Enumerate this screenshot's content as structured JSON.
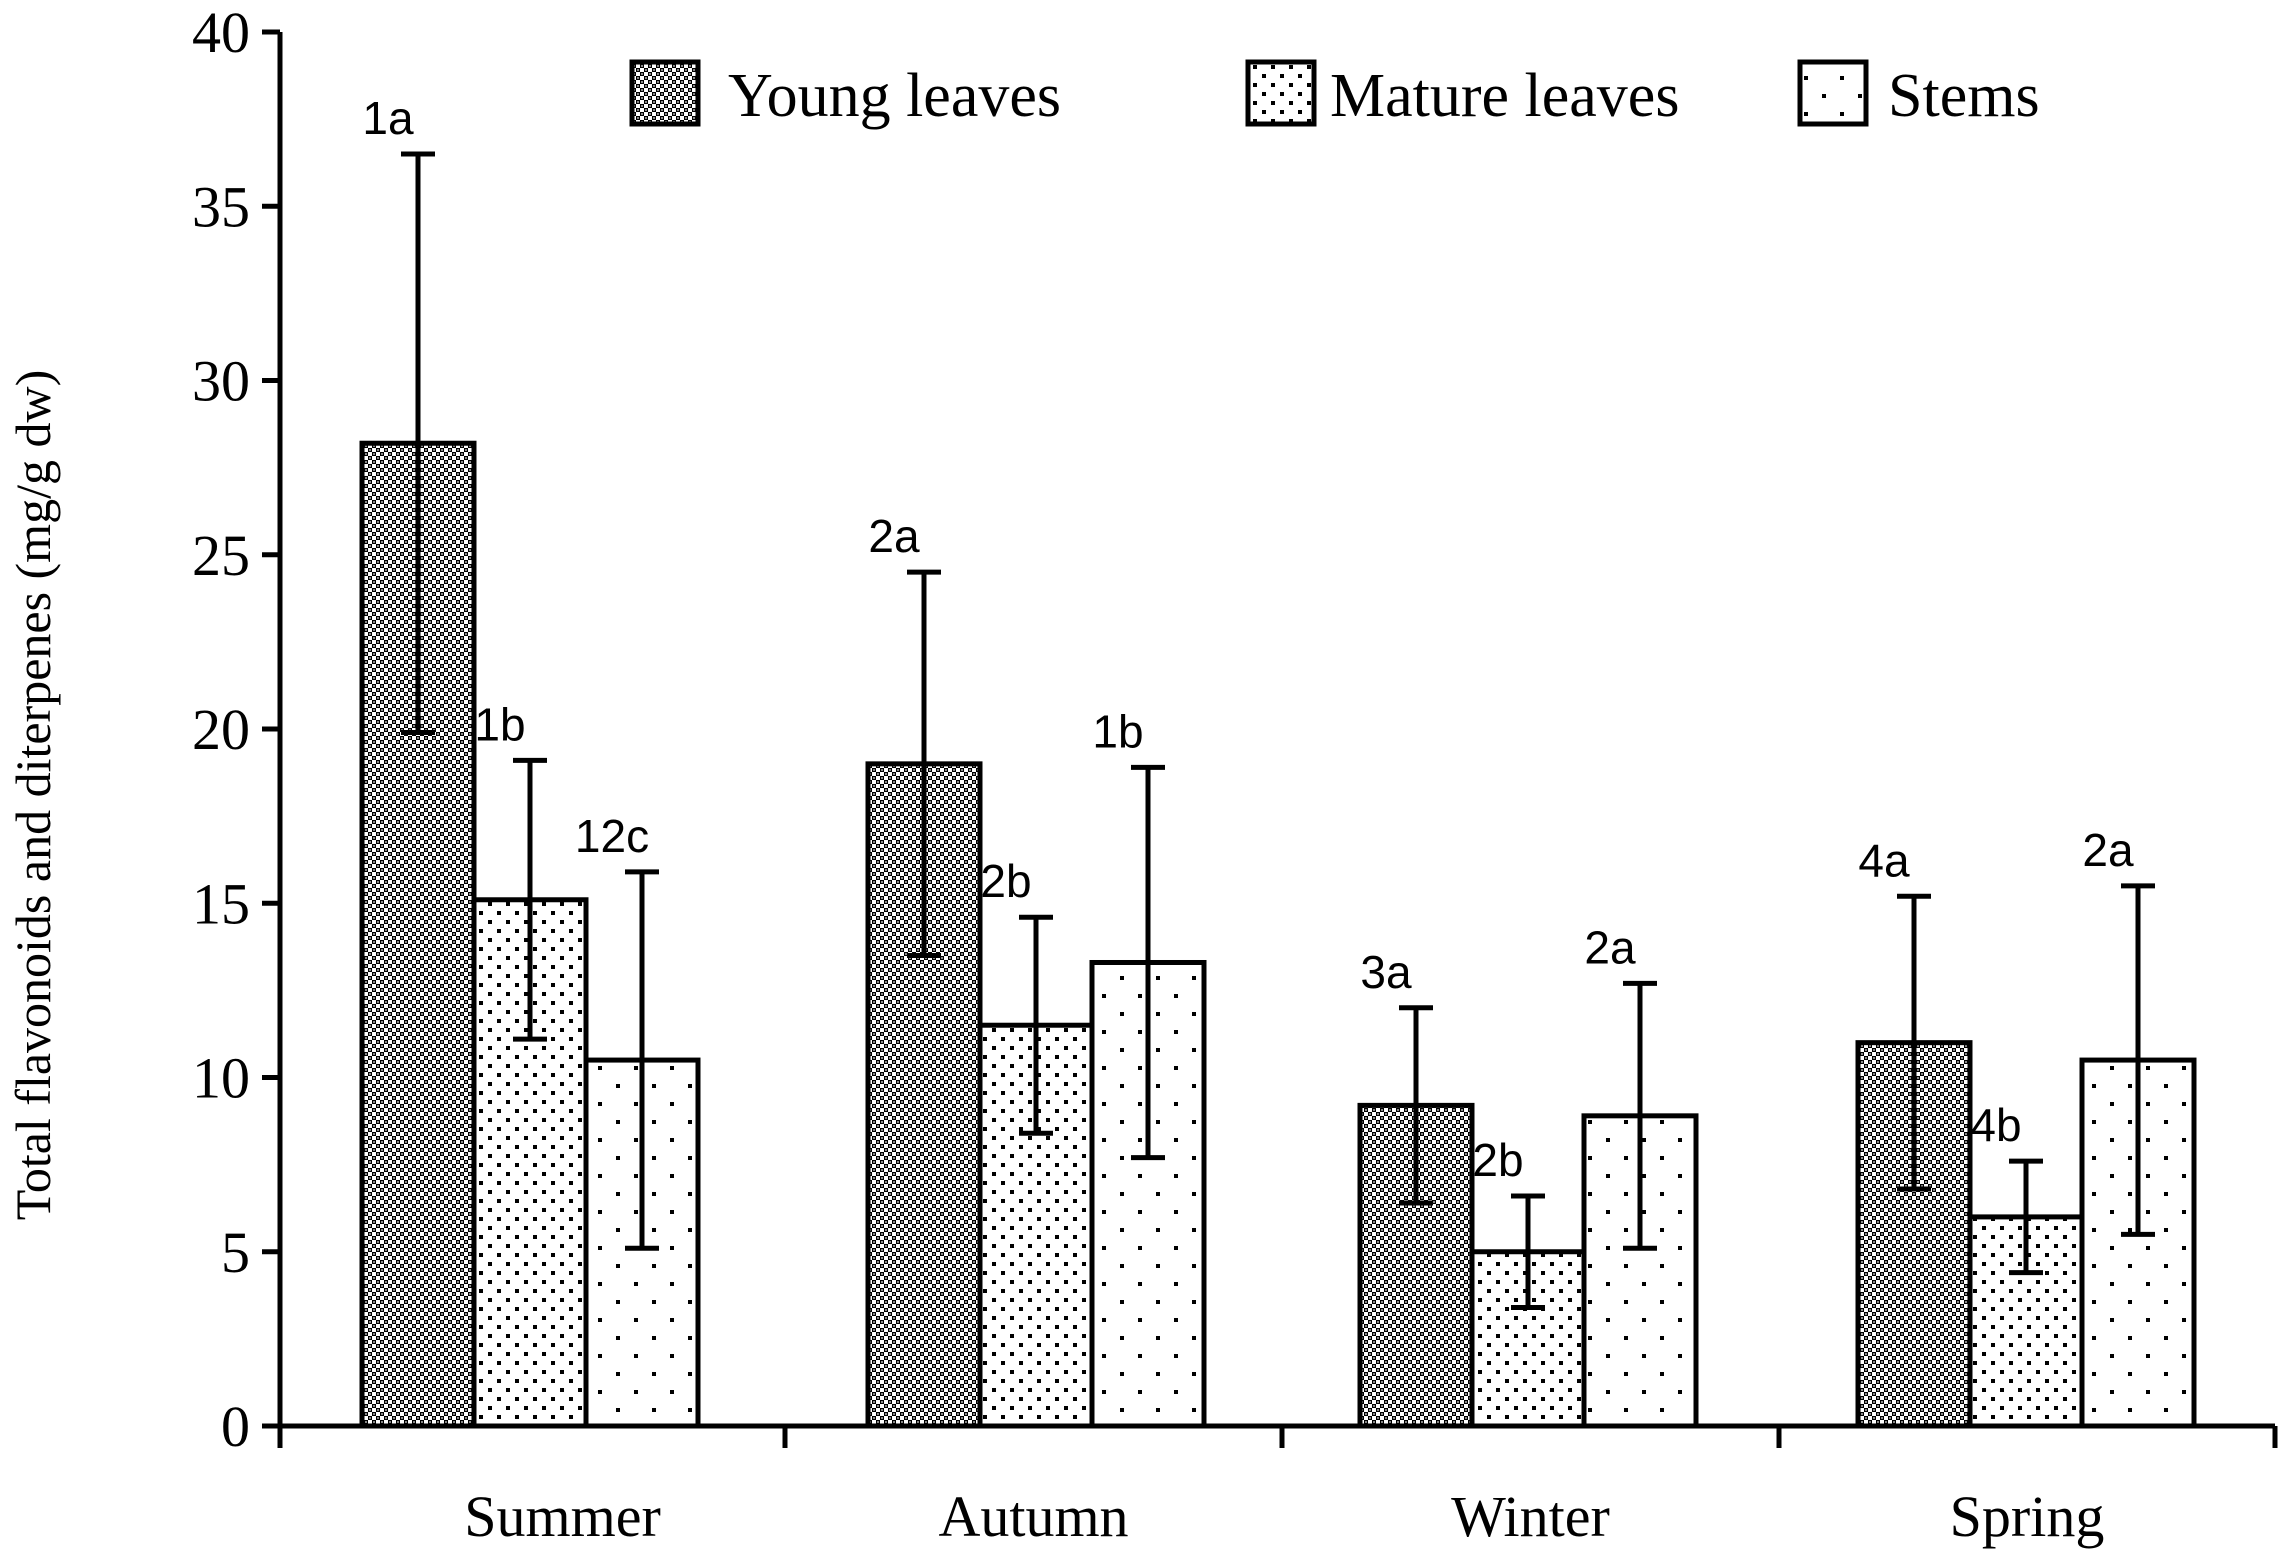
{
  "chart_data": {
    "type": "bar",
    "title": "",
    "xlabel": "",
    "ylabel": "Total flavonoids and diterpenes (mg/g dw)",
    "ylim": [
      0,
      40
    ],
    "yticks": [
      0,
      5,
      10,
      15,
      20,
      25,
      30,
      35,
      40
    ],
    "categories": [
      "Summer",
      "Autumn",
      "Winter",
      "Spring"
    ],
    "legend_position": "top-right",
    "series": [
      {
        "name": "Young leaves",
        "pattern": "dense-checker",
        "values": [
          28.2,
          19.0,
          9.2,
          11.0
        ],
        "error": [
          8.3,
          5.5,
          2.8,
          4.2
        ],
        "labels": [
          "1a",
          "2a",
          "3a",
          "4a"
        ]
      },
      {
        "name": "Mature leaves",
        "pattern": "medium-dots",
        "values": [
          15.1,
          11.5,
          5.0,
          6.0
        ],
        "error": [
          4.0,
          3.1,
          1.6,
          1.6
        ],
        "labels": [
          "1b",
          "2b",
          "2b",
          "4b"
        ]
      },
      {
        "name": "Stems",
        "pattern": "sparse-dots",
        "values": [
          10.5,
          13.3,
          8.9,
          10.5
        ],
        "error": [
          5.4,
          5.6,
          3.8,
          5.0
        ],
        "labels": [
          "12c",
          "1b",
          "2a",
          "2a"
        ]
      }
    ]
  }
}
